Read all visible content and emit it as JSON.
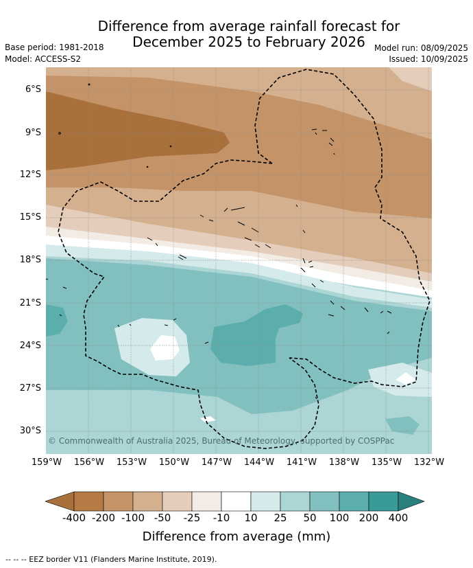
{
  "title_line1": "Difference from average rainfall forecast for",
  "title_line2": "December 2025 to February 2026",
  "meta": {
    "base_period": "Base period: 1981-2018",
    "model": "Model: ACCESS-S2",
    "model_run": "Model run: 08/09/2025",
    "issued": "Issued: 10/09/2025"
  },
  "lat_labels": [
    "6°S",
    "9°S",
    "12°S",
    "15°S",
    "18°S",
    "21°S",
    "24°S",
    "27°S",
    "30°S"
  ],
  "lon_labels": [
    "159°W",
    "156°W",
    "153°W",
    "150°W",
    "147°W",
    "144°W",
    "141°W",
    "138°W",
    "135°W",
    "132°W"
  ],
  "copyright": "© Commonwealth of Australia 2025, Bureau of Meteorology, supported by COSPPac",
  "colorbar": {
    "ticks": [
      "-400",
      "-200",
      "-100",
      "-50",
      "-25",
      "-10",
      "10",
      "25",
      "50",
      "100",
      "200",
      "400"
    ],
    "label": "Difference from average (mm)",
    "colors": [
      "#a8703a",
      "#b57b44",
      "#c49468",
      "#d4b08f",
      "#e4cebb",
      "#f2ece4",
      "#ffffff",
      "#d5ebeb",
      "#acd6d5",
      "#82c0bf",
      "#5caead",
      "#399a98",
      "#2a807f"
    ]
  },
  "legend": "-- -- -- EEZ border V11 (Flanders Marine Institute, 2019)."
}
